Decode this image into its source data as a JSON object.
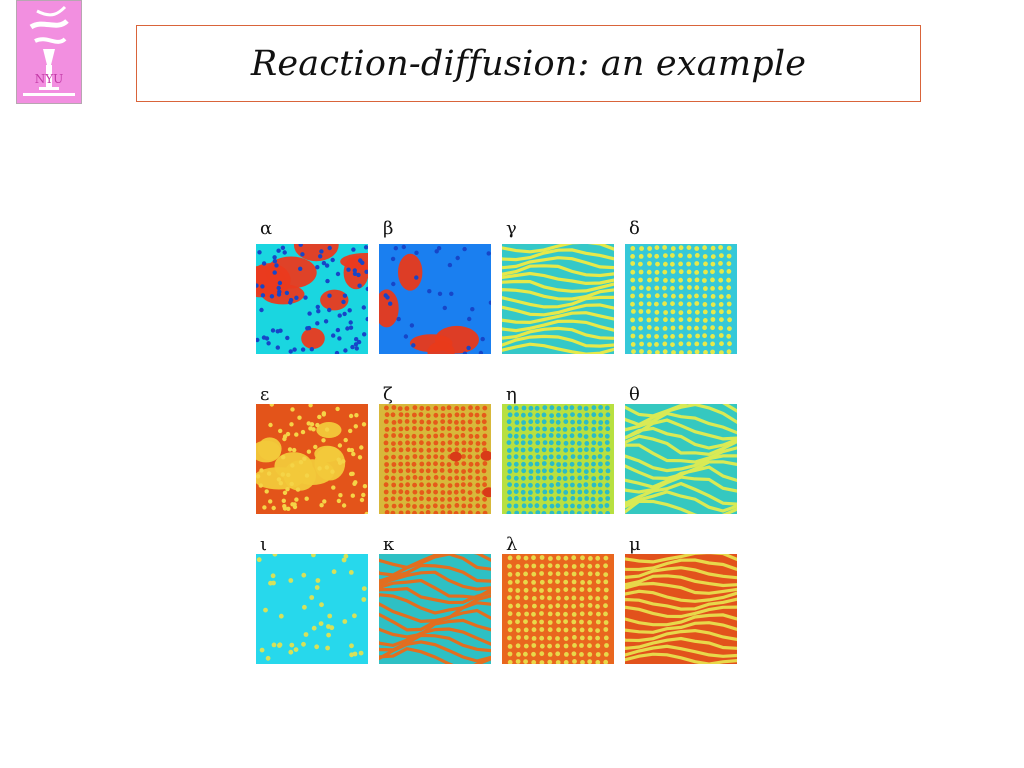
{
  "slide": {
    "title": "Reaction-diffusion: an example",
    "logo": {
      "text": "NYU",
      "icon": "nyu-torch-logo",
      "background": "#f28fe0"
    }
  },
  "panels": [
    {
      "id": "alpha",
      "label": "α",
      "pattern": "mixed-blobs",
      "base": "#1ad6e0",
      "fg": "#ea3a1e"
    },
    {
      "id": "beta",
      "label": "β",
      "pattern": "sparse-blobs",
      "base": "#1a7ff0",
      "fg": "#e83a1a"
    },
    {
      "id": "gamma",
      "label": "γ",
      "pattern": "stripes",
      "base": "#35c8c8",
      "fg": "#e6e94a"
    },
    {
      "id": "delta",
      "label": "δ",
      "pattern": "spots",
      "base": "#35c8d8",
      "fg": "#e6e94a"
    },
    {
      "id": "epsilon",
      "label": "ε",
      "pattern": "hexspots-dark",
      "base": "#e3541a",
      "fg": "#f2c93a"
    },
    {
      "id": "zeta",
      "label": "ζ",
      "pattern": "spots-mixed",
      "base": "#d8b83a",
      "fg": "#e55a1a"
    },
    {
      "id": "eta",
      "label": "η",
      "pattern": "spots-yellow",
      "base": "#b8e040",
      "fg": "#2bbcc6"
    },
    {
      "id": "theta",
      "label": "θ",
      "pattern": "labyrinth",
      "base": "#35c8c0",
      "fg": "#d9ea55"
    },
    {
      "id": "iota",
      "label": "ι",
      "pattern": "sparse-spots",
      "base": "#27d8ec",
      "fg": "#d6e15a"
    },
    {
      "id": "kappa",
      "label": "κ",
      "pattern": "labyrinth-orange",
      "base": "#2ec0c4",
      "fg": "#e26e20"
    },
    {
      "id": "lambda",
      "label": "λ",
      "pattern": "hexspots",
      "base": "#e9661e",
      "fg": "#e8d84a"
    },
    {
      "id": "mu",
      "label": "μ",
      "pattern": "stripes-orange",
      "base": "#e2521c",
      "fg": "#e8d84a"
    }
  ]
}
